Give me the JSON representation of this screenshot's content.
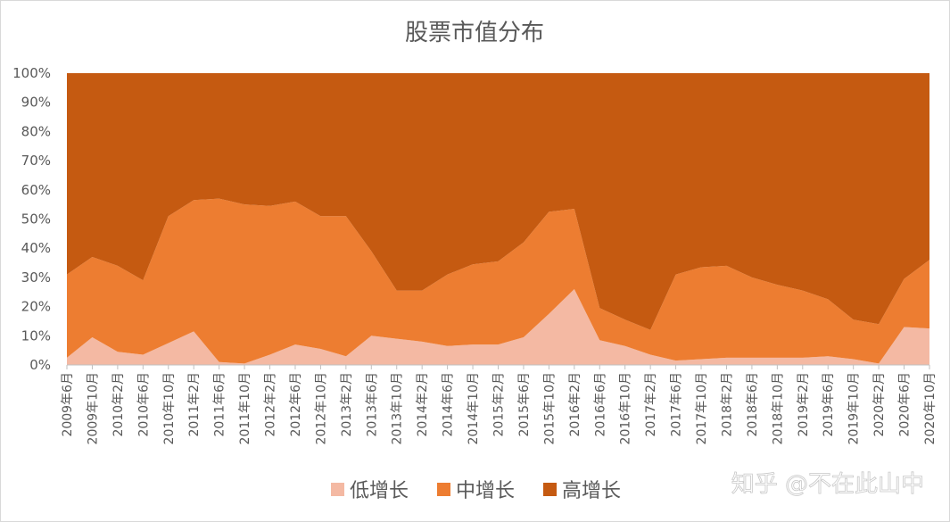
{
  "chart_data": {
    "type": "area",
    "stacked": "percent",
    "title": "股票市值分布",
    "categories": [
      "2009年6月",
      "2009年10月",
      "2010年2月",
      "2010年6月",
      "2010年10月",
      "2011年2月",
      "2011年6月",
      "2011年10月",
      "2012年2月",
      "2012年6月",
      "2012年10月",
      "2013年2月",
      "2013年6月",
      "2013年10月",
      "2014年2月",
      "2014年6月",
      "2014年10月",
      "2015年2月",
      "2015年6月",
      "2015年10月",
      "2016年2月",
      "2016年6月",
      "2016年10月",
      "2017年2月",
      "2017年6月",
      "2017年10月",
      "2018年2月",
      "2018年6月",
      "2018年10月",
      "2019年2月",
      "2019年6月",
      "2019年10月",
      "2020年2月",
      "2020年6月",
      "2020年10月"
    ],
    "series": [
      {
        "name": "低增长",
        "color": "#f4b9a3",
        "values": [
          2.5,
          9.5,
          4.5,
          3.5,
          7.5,
          11.5,
          1,
          0.5,
          3.5,
          7,
          5.5,
          3,
          10,
          9,
          8,
          6.5,
          7,
          7,
          9.5,
          17.5,
          26,
          8.5,
          6.5,
          3.5,
          1.5,
          2,
          2.5,
          2.5,
          2.5,
          2.5,
          3,
          2,
          0.5,
          13,
          12.5
        ]
      },
      {
        "name": "中增长",
        "color": "#ed7d31",
        "values": [
          28.5,
          27.5,
          29.5,
          25.5,
          43.5,
          45,
          56,
          54.5,
          51,
          49,
          45.5,
          48,
          29,
          16.5,
          17.5,
          24.5,
          27.5,
          28.5,
          32.5,
          35,
          27.5,
          11,
          9,
          8.5,
          29.5,
          31.5,
          31.5,
          27.5,
          25,
          23,
          19.5,
          13.5,
          13.5,
          16.5,
          23.5
        ]
      },
      {
        "name": "高增长",
        "color": "#c55a11",
        "values": [
          69,
          63,
          66,
          71,
          49,
          43.5,
          43,
          45,
          45.5,
          44,
          49,
          49,
          61,
          74.5,
          74.5,
          69,
          65.5,
          64.5,
          58,
          47.5,
          46.5,
          80.5,
          84.5,
          88,
          69,
          66.5,
          66,
          70,
          72.5,
          74.5,
          77.5,
          84.5,
          86,
          70.5,
          64
        ]
      }
    ],
    "ylim": [
      0,
      100
    ],
    "yticks": [
      "0%",
      "10%",
      "20%",
      "30%",
      "40%",
      "50%",
      "60%",
      "70%",
      "80%",
      "90%",
      "100%"
    ],
    "grid": false,
    "legend": "bottom"
  },
  "watermark": "知乎 @不在此山中"
}
